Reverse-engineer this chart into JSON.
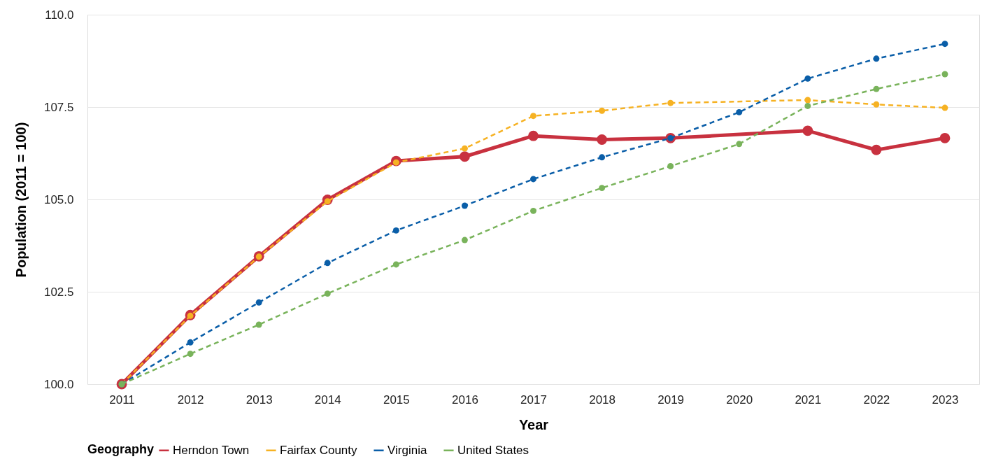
{
  "chart_data": {
    "type": "line",
    "xlabel": "Year",
    "ylabel": "Population (2011 = 100)",
    "legend_title": "Geography",
    "legend": "bottom",
    "grid": "y",
    "marker": "circle",
    "categories": [
      "2011",
      "2012",
      "2013",
      "2014",
      "2015",
      "2016",
      "2017",
      "2018",
      "2019",
      "2020",
      "2021",
      "2022",
      "2023"
    ],
    "ylim": [
      100,
      110
    ],
    "yticks": [
      {
        "value": 100,
        "label": "100.0"
      },
      {
        "value": 102.5,
        "label": "102.5"
      },
      {
        "value": 105,
        "label": "105.0"
      },
      {
        "value": 107.5,
        "label": "107.5"
      },
      {
        "value": 110,
        "label": "110.0"
      }
    ],
    "series": [
      {
        "name": "Herndon Town",
        "color": "#c8313f",
        "line_style": "solid",
        "values": [
          100,
          101.87,
          103.46,
          104.99,
          106.04,
          106.16,
          106.72,
          106.62,
          106.66,
          null,
          106.86,
          106.34,
          106.66
        ]
      },
      {
        "name": "Fairfax County",
        "color": "#f6b223",
        "line_style": "dashed",
        "values": [
          100,
          101.85,
          103.45,
          104.95,
          106.0,
          106.38,
          107.26,
          107.4,
          107.61,
          null,
          107.69,
          107.57,
          107.48
        ]
      },
      {
        "name": "Virginia",
        "color": "#0a5ea8",
        "line_style": "dashed",
        "values": [
          100,
          101.13,
          102.21,
          103.28,
          104.16,
          104.83,
          105.55,
          106.14,
          106.66,
          107.36,
          108.27,
          108.81,
          109.21
        ]
      },
      {
        "name": "United States",
        "color": "#79b35b",
        "line_style": "dashed",
        "values": [
          100,
          100.82,
          101.61,
          102.45,
          103.24,
          103.9,
          104.69,
          105.31,
          105.9,
          106.5,
          107.53,
          107.99,
          108.39
        ]
      }
    ]
  }
}
